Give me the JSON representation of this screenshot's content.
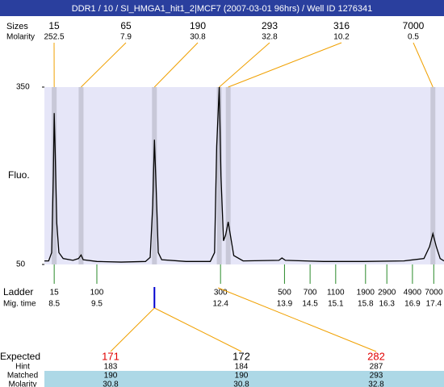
{
  "chart_data": {
    "type": "line",
    "title": "DDR1 / 10 / SI_HMGA1_hit1_2|MCF7 (2007-03-01 96hrs) / Well ID 1276341",
    "ylabel": "Fluo.",
    "xlim": [
      8.27,
      17.64
    ],
    "ylim": [
      50,
      350
    ],
    "yticks": [
      350,
      50
    ],
    "color": "#000000",
    "x": [
      8.27,
      8.37,
      8.44,
      8.48,
      8.5,
      8.52,
      8.56,
      8.61,
      8.71,
      8.94,
      9.07,
      9.13,
      9.18,
      9.5,
      10.07,
      10.64,
      10.75,
      10.81,
      10.85,
      10.89,
      10.94,
      11.02,
      11.59,
      12.16,
      12.26,
      12.31,
      12.37,
      12.41,
      12.47,
      12.52,
      12.58,
      12.63,
      12.71,
      12.93,
      13.77,
      13.84,
      13.92,
      14.81,
      15.75,
      16.7,
      17.17,
      17.3,
      17.38,
      17.46,
      17.55,
      17.64
    ],
    "values": [
      56,
      56,
      70,
      200,
      306,
      250,
      120,
      70,
      60,
      57,
      60,
      66,
      58,
      55,
      54,
      55,
      62,
      150,
      261,
      180,
      70,
      58,
      55,
      55,
      70,
      250,
      350,
      200,
      90,
      100,
      122,
      100,
      65,
      56,
      57,
      61,
      57,
      55,
      55,
      56,
      60,
      80,
      102,
      80,
      60,
      56
    ],
    "peaks": {
      "size_label": "Sizes",
      "molarity_label": "Molarity",
      "sizes": [
        15,
        65,
        190,
        293,
        316,
        7000
      ],
      "molarity": [
        252.5,
        7.9,
        30.8,
        32.8,
        10.2,
        0.5
      ],
      "times": [
        8.5,
        9.13,
        10.85,
        12.37,
        12.58,
        17.38
      ]
    },
    "ladder": {
      "label": "Ladder",
      "time_label": "Mig. time",
      "sizes": [
        15,
        100,
        300,
        500,
        700,
        1100,
        1900,
        2900,
        4900,
        7000
      ],
      "times": [
        8.5,
        9.5,
        12.4,
        13.9,
        14.5,
        15.1,
        15.8,
        16.3,
        16.9,
        17.4
      ]
    },
    "table": {
      "row_labels": [
        "Expected",
        "Hint",
        "Matched",
        "Molarity"
      ],
      "expected": [
        171,
        172,
        282
      ],
      "expected_colors": [
        "#e00000",
        "#000000",
        "#e00000"
      ],
      "hint": [
        183,
        184,
        287
      ],
      "matched": [
        190,
        190,
        293
      ],
      "molarity": [
        30.8,
        30.8,
        32.8
      ]
    }
  }
}
